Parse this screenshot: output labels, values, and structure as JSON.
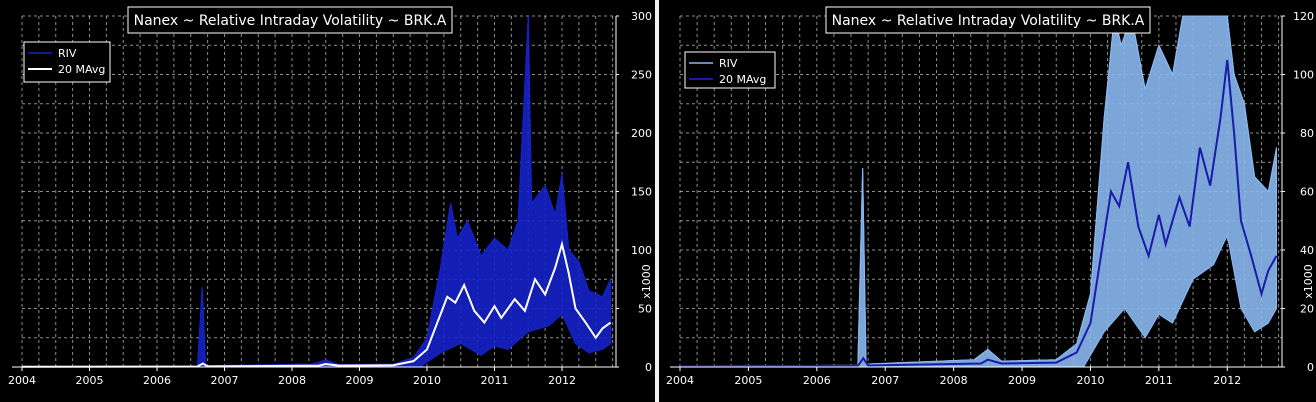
{
  "chart_data": [
    {
      "type": "area",
      "title": "Nanex ~ Relative Intraday Volatility ~ BRK.A",
      "ylabel": "x1000",
      "xlim": [
        2004,
        2012.8
      ],
      "ylim": [
        0,
        300
      ],
      "x_ticks": [
        "2004",
        "2005",
        "2006",
        "2007",
        "2008",
        "2009",
        "2010",
        "2011",
        "2012"
      ],
      "y_ticks": [
        0,
        50,
        100,
        150,
        200,
        250,
        300
      ],
      "grid": true,
      "legend_position": "top-left",
      "series": [
        {
          "name": "RIV",
          "color": "#1522c8",
          "style": "area",
          "points": [
            [
              2004.0,
              0.3
            ],
            [
              2006.6,
              0.6
            ],
            [
              2006.67,
              68
            ],
            [
              2006.72,
              1
            ],
            [
              2008.3,
              2.5
            ],
            [
              2008.5,
              6
            ],
            [
              2008.7,
              2
            ],
            [
              2009.5,
              2.5
            ],
            [
              2009.8,
              8
            ],
            [
              2010.0,
              25
            ],
            [
              2010.2,
              85
            ],
            [
              2010.35,
              140
            ],
            [
              2010.45,
              110
            ],
            [
              2010.6,
              125
            ],
            [
              2010.8,
              95
            ],
            [
              2011.0,
              110
            ],
            [
              2011.2,
              100
            ],
            [
              2011.35,
              125
            ],
            [
              2011.5,
              300
            ],
            [
              2011.55,
              140
            ],
            [
              2011.75,
              155
            ],
            [
              2011.9,
              130
            ],
            [
              2012.0,
              165
            ],
            [
              2012.1,
              100
            ],
            [
              2012.25,
              90
            ],
            [
              2012.4,
              65
            ],
            [
              2012.6,
              60
            ],
            [
              2012.72,
              75
            ]
          ],
          "lower": [
            [
              2004.0,
              0
            ],
            [
              2009.9,
              0
            ],
            [
              2010.2,
              12
            ],
            [
              2010.5,
              20
            ],
            [
              2010.8,
              10
            ],
            [
              2011.0,
              18
            ],
            [
              2011.2,
              15
            ],
            [
              2011.5,
              30
            ],
            [
              2011.8,
              35
            ],
            [
              2012.0,
              45
            ],
            [
              2012.2,
              20
            ],
            [
              2012.4,
              12
            ],
            [
              2012.6,
              15
            ],
            [
              2012.72,
              20
            ]
          ]
        },
        {
          "name": "20 MAvg",
          "color": "#ffffff",
          "style": "line",
          "points": [
            [
              2004.0,
              0.2
            ],
            [
              2006.6,
              0.4
            ],
            [
              2006.68,
              3
            ],
            [
              2006.75,
              0.5
            ],
            [
              2008.4,
              1.2
            ],
            [
              2008.5,
              2.5
            ],
            [
              2008.7,
              1.2
            ],
            [
              2009.5,
              1.5
            ],
            [
              2009.8,
              5
            ],
            [
              2010.0,
              15
            ],
            [
              2010.2,
              45
            ],
            [
              2010.3,
              60
            ],
            [
              2010.42,
              55
            ],
            [
              2010.55,
              70
            ],
            [
              2010.7,
              48
            ],
            [
              2010.85,
              38
            ],
            [
              2011.0,
              52
            ],
            [
              2011.1,
              42
            ],
            [
              2011.3,
              58
            ],
            [
              2011.45,
              48
            ],
            [
              2011.6,
              75
            ],
            [
              2011.75,
              62
            ],
            [
              2011.9,
              85
            ],
            [
              2012.0,
              105
            ],
            [
              2012.1,
              80
            ],
            [
              2012.2,
              50
            ],
            [
              2012.35,
              38
            ],
            [
              2012.5,
              25
            ],
            [
              2012.6,
              33
            ],
            [
              2012.72,
              38
            ]
          ]
        }
      ]
    },
    {
      "type": "area",
      "title": "Nanex ~ Relative Intraday Volatility ~ BRK.A",
      "ylabel": "x1000",
      "xlim": [
        2004,
        2012.8
      ],
      "ylim": [
        0,
        120
      ],
      "x_ticks": [
        "2004",
        "2005",
        "2006",
        "2007",
        "2008",
        "2009",
        "2010",
        "2011",
        "2012"
      ],
      "y_ticks": [
        0,
        20,
        40,
        60,
        80,
        100,
        120
      ],
      "grid": true,
      "legend_position": "top-left",
      "series": [
        {
          "name": "RIV",
          "color": "#8ab8f0",
          "style": "area",
          "points": [
            [
              2004.0,
              0.3
            ],
            [
              2006.6,
              0.6
            ],
            [
              2006.67,
              68
            ],
            [
              2006.72,
              1
            ],
            [
              2008.3,
              2.5
            ],
            [
              2008.5,
              6
            ],
            [
              2008.7,
              2
            ],
            [
              2009.5,
              2.5
            ],
            [
              2009.8,
              8
            ],
            [
              2010.0,
              25
            ],
            [
              2010.2,
              85
            ],
            [
              2010.35,
              120
            ],
            [
              2010.45,
              110
            ],
            [
              2010.6,
              120
            ],
            [
              2010.8,
              95
            ],
            [
              2011.0,
              110
            ],
            [
              2011.2,
              100
            ],
            [
              2011.35,
              120
            ],
            [
              2011.5,
              120
            ],
            [
              2011.55,
              120
            ],
            [
              2011.75,
              120
            ],
            [
              2011.9,
              120
            ],
            [
              2012.0,
              120
            ],
            [
              2012.1,
              100
            ],
            [
              2012.25,
              90
            ],
            [
              2012.4,
              65
            ],
            [
              2012.6,
              60
            ],
            [
              2012.72,
              75
            ]
          ],
          "lower": [
            [
              2004.0,
              0
            ],
            [
              2009.9,
              0
            ],
            [
              2010.2,
              12
            ],
            [
              2010.5,
              20
            ],
            [
              2010.8,
              10
            ],
            [
              2011.0,
              18
            ],
            [
              2011.2,
              15
            ],
            [
              2011.5,
              30
            ],
            [
              2011.8,
              35
            ],
            [
              2012.0,
              45
            ],
            [
              2012.2,
              20
            ],
            [
              2012.4,
              12
            ],
            [
              2012.6,
              15
            ],
            [
              2012.72,
              20
            ]
          ]
        },
        {
          "name": "20 MAvg",
          "color": "#1a1aa8",
          "style": "line",
          "points": [
            [
              2004.0,
              0.2
            ],
            [
              2006.6,
              0.4
            ],
            [
              2006.68,
              3
            ],
            [
              2006.75,
              0.5
            ],
            [
              2008.4,
              1.2
            ],
            [
              2008.5,
              2.5
            ],
            [
              2008.7,
              1.2
            ],
            [
              2009.5,
              1.5
            ],
            [
              2009.8,
              5
            ],
            [
              2010.0,
              15
            ],
            [
              2010.2,
              45
            ],
            [
              2010.3,
              60
            ],
            [
              2010.42,
              55
            ],
            [
              2010.55,
              70
            ],
            [
              2010.7,
              48
            ],
            [
              2010.85,
              38
            ],
            [
              2011.0,
              52
            ],
            [
              2011.1,
              42
            ],
            [
              2011.3,
              58
            ],
            [
              2011.45,
              48
            ],
            [
              2011.6,
              75
            ],
            [
              2011.75,
              62
            ],
            [
              2011.9,
              85
            ],
            [
              2012.0,
              105
            ],
            [
              2012.1,
              80
            ],
            [
              2012.2,
              50
            ],
            [
              2012.35,
              38
            ],
            [
              2012.5,
              25
            ],
            [
              2012.6,
              33
            ],
            [
              2012.72,
              38
            ]
          ]
        }
      ]
    }
  ]
}
